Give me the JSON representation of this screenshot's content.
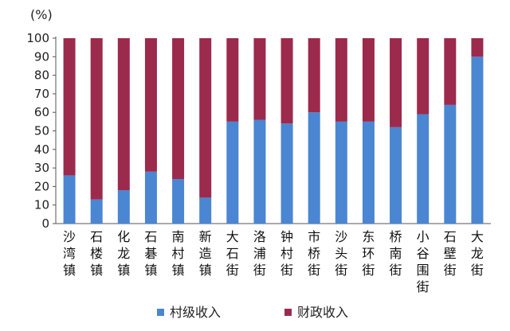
{
  "chart_data": {
    "type": "bar",
    "stacked": true,
    "y_unit": "(%)",
    "ylim": [
      0,
      100
    ],
    "yticks": [
      0,
      10,
      20,
      30,
      40,
      50,
      60,
      70,
      80,
      90,
      100
    ],
    "grid": false,
    "legend_position": "bottom",
    "categories": [
      "沙湾镇",
      "石楼镇",
      "化龙镇",
      "石碁镇",
      "南村镇",
      "新造镇",
      "大石街",
      "洛浦街",
      "钟村街",
      "市桥街",
      "沙头街",
      "东环街",
      "桥南街",
      "小谷围街",
      "石壁街",
      "大龙街"
    ],
    "series": [
      {
        "name": "村级收入",
        "color": "#4a86d2",
        "values": [
          26,
          13,
          18,
          28,
          24,
          14,
          55,
          56,
          54,
          60,
          55,
          55,
          52,
          59,
          64,
          90
        ]
      },
      {
        "name": "财政收入",
        "color": "#9c2a4d",
        "values": [
          74,
          87,
          82,
          72,
          76,
          86,
          45,
          44,
          46,
          40,
          45,
          45,
          48,
          41,
          36,
          10
        ]
      }
    ]
  }
}
